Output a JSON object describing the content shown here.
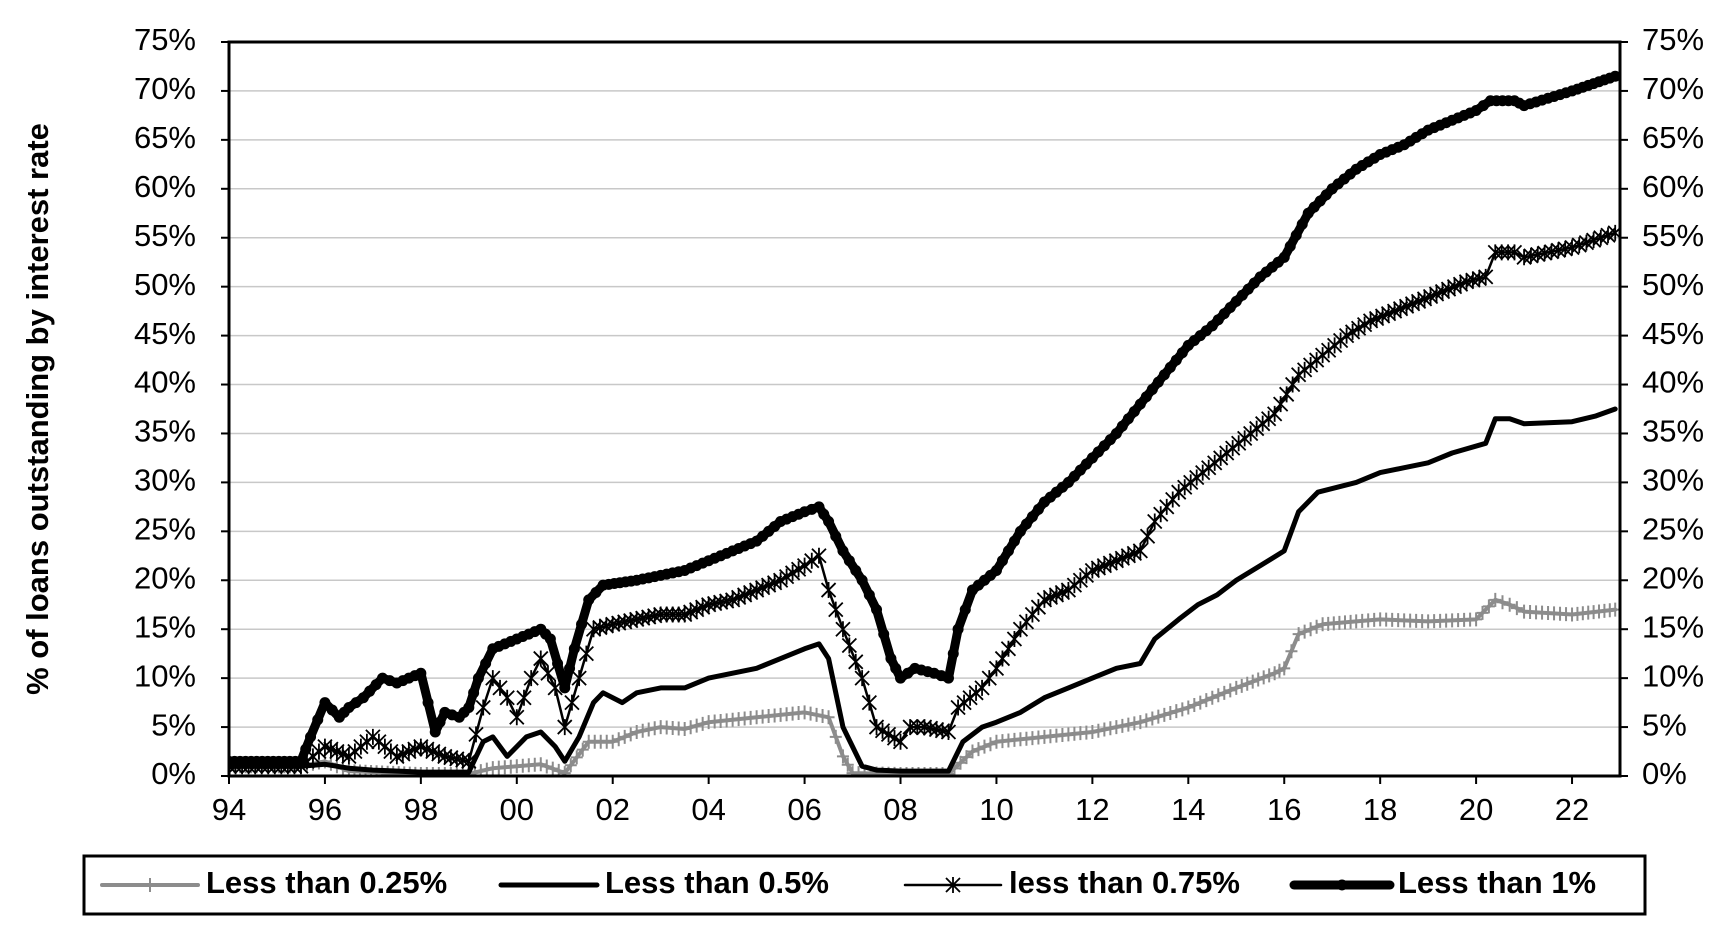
{
  "chart_data": {
    "type": "line",
    "title": "",
    "xlabel": "",
    "ylabel": "% of loans outstanding by interest rate",
    "xlim": [
      1994,
      2023
    ],
    "ylim": [
      0,
      75
    ],
    "x_ticks": [
      "94",
      "96",
      "98",
      "00",
      "02",
      "04",
      "06",
      "08",
      "10",
      "12",
      "14",
      "16",
      "18",
      "20",
      "22"
    ],
    "y_ticks": [
      "0%",
      "5%",
      "10%",
      "15%",
      "20%",
      "25%",
      "30%",
      "35%",
      "40%",
      "45%",
      "50%",
      "55%",
      "60%",
      "65%",
      "70%",
      "75%"
    ],
    "secondary_y_axis": true,
    "grid": "horizontal",
    "legend_position": "bottom",
    "series": [
      {
        "name": "Less than 0.25%",
        "color": "#8c8c8c",
        "marker": "plus",
        "points": [
          [
            1994,
            1
          ],
          [
            1995.5,
            1
          ],
          [
            1996,
            1.5
          ],
          [
            1996.5,
            0.5
          ],
          [
            1998,
            0.2
          ],
          [
            1999,
            0.2
          ],
          [
            1999.5,
            0.8
          ],
          [
            2000.5,
            1.2
          ],
          [
            2001,
            0.3
          ],
          [
            2001.5,
            3.5
          ],
          [
            2002,
            3.5
          ],
          [
            2002.5,
            4.5
          ],
          [
            2003,
            5
          ],
          [
            2003.5,
            4.8
          ],
          [
            2004,
            5.5
          ],
          [
            2005,
            6
          ],
          [
            2006,
            6.5
          ],
          [
            2006.5,
            6
          ],
          [
            2006.8,
            2
          ],
          [
            2007,
            0.3
          ],
          [
            2008,
            0.2
          ],
          [
            2009,
            0.2
          ],
          [
            2009.5,
            2.5
          ],
          [
            2010,
            3.5
          ],
          [
            2011,
            4
          ],
          [
            2012,
            4.5
          ],
          [
            2013,
            5.5
          ],
          [
            2014,
            7
          ],
          [
            2015,
            9
          ],
          [
            2015.8,
            10.5
          ],
          [
            2016,
            11
          ],
          [
            2016.3,
            14.5
          ],
          [
            2016.8,
            15.5
          ],
          [
            2017.5,
            15.8
          ],
          [
            2018,
            16
          ],
          [
            2019,
            15.8
          ],
          [
            2020,
            16
          ],
          [
            2020.4,
            18
          ],
          [
            2020.7,
            17.5
          ],
          [
            2021,
            16.8
          ],
          [
            2022,
            16.5
          ],
          [
            2022.9,
            17
          ]
        ]
      },
      {
        "name": "Less than 0.5%",
        "color": "#000000",
        "marker": "none",
        "points": [
          [
            1994,
            1
          ],
          [
            1995.5,
            1
          ],
          [
            1996,
            1.2
          ],
          [
            1996.5,
            0.8
          ],
          [
            1997,
            0.6
          ],
          [
            1998,
            0.4
          ],
          [
            1999,
            0.4
          ],
          [
            1999.3,
            3.5
          ],
          [
            1999.5,
            4
          ],
          [
            1999.8,
            2
          ],
          [
            2000.2,
            4
          ],
          [
            2000.5,
            4.5
          ],
          [
            2000.8,
            3
          ],
          [
            2001,
            1.5
          ],
          [
            2001.3,
            4
          ],
          [
            2001.6,
            7.5
          ],
          [
            2001.8,
            8.5
          ],
          [
            2002.2,
            7.5
          ],
          [
            2002.5,
            8.5
          ],
          [
            2003,
            9
          ],
          [
            2003.5,
            9
          ],
          [
            2004,
            10
          ],
          [
            2005,
            11
          ],
          [
            2005.5,
            12
          ],
          [
            2006,
            13
          ],
          [
            2006.3,
            13.5
          ],
          [
            2006.5,
            12
          ],
          [
            2006.8,
            5
          ],
          [
            2007.2,
            1
          ],
          [
            2007.5,
            0.6
          ],
          [
            2008,
            0.5
          ],
          [
            2009,
            0.5
          ],
          [
            2009.3,
            3.5
          ],
          [
            2009.7,
            5
          ],
          [
            2010,
            5.5
          ],
          [
            2010.5,
            6.5
          ],
          [
            2011,
            8
          ],
          [
            2011.5,
            9
          ],
          [
            2012,
            10
          ],
          [
            2012.5,
            11
          ],
          [
            2013,
            11.5
          ],
          [
            2013.3,
            14
          ],
          [
            2013.8,
            16
          ],
          [
            2014.2,
            17.5
          ],
          [
            2014.6,
            18.5
          ],
          [
            2015,
            20
          ],
          [
            2015.5,
            21.5
          ],
          [
            2016,
            23
          ],
          [
            2016.3,
            27
          ],
          [
            2016.7,
            29
          ],
          [
            2017.5,
            30
          ],
          [
            2018,
            31
          ],
          [
            2018.5,
            31.5
          ],
          [
            2019,
            32
          ],
          [
            2019.5,
            33
          ],
          [
            2020.2,
            34
          ],
          [
            2020.4,
            36.5
          ],
          [
            2020.7,
            36.5
          ],
          [
            2021,
            36
          ],
          [
            2022,
            36.2
          ],
          [
            2022.5,
            36.8
          ],
          [
            2022.9,
            37.5
          ]
        ]
      },
      {
        "name": "less than 0.75%",
        "color": "#000000",
        "marker": "star",
        "points": [
          [
            1994,
            1
          ],
          [
            1995.5,
            1
          ],
          [
            1996,
            3
          ],
          [
            1996.5,
            2
          ],
          [
            1997,
            4
          ],
          [
            1997.5,
            2
          ],
          [
            1998,
            3
          ],
          [
            1998.5,
            2
          ],
          [
            1999,
            1.5
          ],
          [
            1999.3,
            7
          ],
          [
            1999.5,
            10
          ],
          [
            1999.8,
            8
          ],
          [
            2000,
            6
          ],
          [
            2000.3,
            10
          ],
          [
            2000.5,
            12
          ],
          [
            2000.8,
            9
          ],
          [
            2001,
            5
          ],
          [
            2001.3,
            10
          ],
          [
            2001.6,
            15
          ],
          [
            2002,
            15.5
          ],
          [
            2002.5,
            16
          ],
          [
            2003,
            16.5
          ],
          [
            2003.5,
            16.5
          ],
          [
            2004,
            17.5
          ],
          [
            2004.5,
            18
          ],
          [
            2005,
            19
          ],
          [
            2005.5,
            20
          ],
          [
            2006,
            21.5
          ],
          [
            2006.3,
            22.5
          ],
          [
            2006.5,
            19
          ],
          [
            2006.8,
            15
          ],
          [
            2007.2,
            10
          ],
          [
            2007.5,
            5
          ],
          [
            2008,
            3.5
          ],
          [
            2008.2,
            5
          ],
          [
            2008.5,
            5
          ],
          [
            2009,
            4.5
          ],
          [
            2009.2,
            7
          ],
          [
            2009.7,
            9
          ],
          [
            2010,
            11
          ],
          [
            2010.5,
            15
          ],
          [
            2011,
            18
          ],
          [
            2011.5,
            19
          ],
          [
            2012,
            21
          ],
          [
            2012.5,
            22
          ],
          [
            2013,
            23
          ],
          [
            2013.3,
            26
          ],
          [
            2013.8,
            29
          ],
          [
            2014.3,
            31
          ],
          [
            2014.8,
            33
          ],
          [
            2015.3,
            35
          ],
          [
            2015.8,
            37
          ],
          [
            2016.3,
            41
          ],
          [
            2016.8,
            43
          ],
          [
            2017.3,
            45
          ],
          [
            2017.8,
            46.5
          ],
          [
            2018.3,
            47.5
          ],
          [
            2018.8,
            48.5
          ],
          [
            2019.3,
            49.5
          ],
          [
            2019.8,
            50.5
          ],
          [
            2020.2,
            51
          ],
          [
            2020.4,
            53.5
          ],
          [
            2020.8,
            53.5
          ],
          [
            2021,
            53
          ],
          [
            2022,
            54
          ],
          [
            2022.9,
            55.5
          ]
        ]
      },
      {
        "name": "Less than 1%",
        "color": "#000000",
        "marker": "dot",
        "points": [
          [
            1994,
            1.5
          ],
          [
            1995.5,
            1.5
          ],
          [
            1995.7,
            4
          ],
          [
            1996,
            7.5
          ],
          [
            1996.3,
            6
          ],
          [
            1996.5,
            7
          ],
          [
            1996.8,
            8
          ],
          [
            1997.2,
            10
          ],
          [
            1997.5,
            9.5
          ],
          [
            1998,
            10.5
          ],
          [
            1998.3,
            4.5
          ],
          [
            1998.5,
            6.5
          ],
          [
            1998.8,
            6
          ],
          [
            1999,
            7
          ],
          [
            1999.2,
            10
          ],
          [
            1999.5,
            13
          ],
          [
            2000,
            14
          ],
          [
            2000.5,
            15
          ],
          [
            2000.7,
            14
          ],
          [
            2001,
            9
          ],
          [
            2001.2,
            13
          ],
          [
            2001.5,
            18
          ],
          [
            2001.8,
            19.5
          ],
          [
            2002.5,
            20
          ],
          [
            2003,
            20.5
          ],
          [
            2003.5,
            21
          ],
          [
            2004,
            22
          ],
          [
            2004.5,
            23
          ],
          [
            2005,
            24
          ],
          [
            2005.5,
            26
          ],
          [
            2006,
            27
          ],
          [
            2006.3,
            27.5
          ],
          [
            2006.5,
            26
          ],
          [
            2006.8,
            23
          ],
          [
            2007.2,
            20
          ],
          [
            2007.5,
            17
          ],
          [
            2007.8,
            12
          ],
          [
            2008,
            10
          ],
          [
            2008.3,
            11
          ],
          [
            2008.7,
            10.5
          ],
          [
            2009,
            10
          ],
          [
            2009.2,
            15
          ],
          [
            2009.5,
            19
          ],
          [
            2010,
            21
          ],
          [
            2010.5,
            25
          ],
          [
            2011,
            28
          ],
          [
            2011.5,
            30
          ],
          [
            2012,
            32.5
          ],
          [
            2012.5,
            35
          ],
          [
            2013,
            38
          ],
          [
            2013.5,
            41
          ],
          [
            2014,
            44
          ],
          [
            2014.5,
            46
          ],
          [
            2015,
            48.5
          ],
          [
            2015.5,
            51
          ],
          [
            2016,
            53
          ],
          [
            2016.5,
            57.5
          ],
          [
            2017,
            60
          ],
          [
            2017.5,
            62
          ],
          [
            2018,
            63.5
          ],
          [
            2018.5,
            64.5
          ],
          [
            2019,
            66
          ],
          [
            2019.5,
            67
          ],
          [
            2020,
            68
          ],
          [
            2020.3,
            69
          ],
          [
            2020.8,
            69
          ],
          [
            2021,
            68.5
          ],
          [
            2022,
            70
          ],
          [
            2022.9,
            71.5
          ]
        ]
      }
    ]
  }
}
